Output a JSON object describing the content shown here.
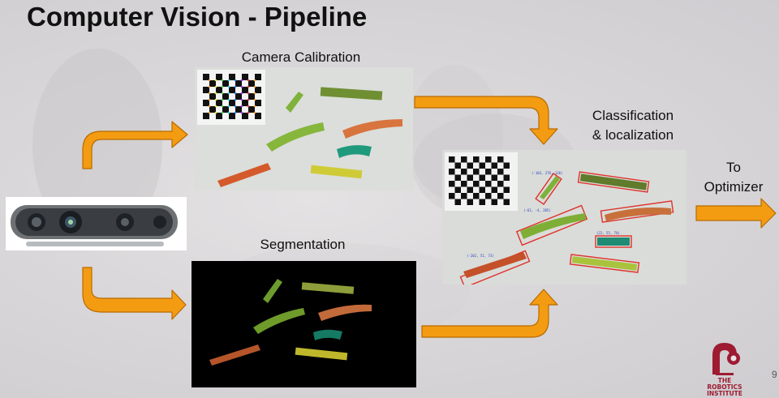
{
  "slide": {
    "title": "Computer Vision - Pipeline",
    "page_number": "9"
  },
  "stages": {
    "calibration_label": "Camera Calibration",
    "segmentation_label": "Segmentation",
    "classification_label_line1": "Classification",
    "classification_label_line2": "& localization",
    "optimizer_label_line1": "To",
    "optimizer_label_line2": "Optimizer"
  },
  "colors": {
    "arrow_fill": "#f39c12",
    "arrow_stroke": "#b96a00",
    "logo_red": "#9e1b32",
    "detection_box": "#e0312b"
  },
  "icons": [
    "depth-camera-icon",
    "robotics-institute-logo"
  ]
}
